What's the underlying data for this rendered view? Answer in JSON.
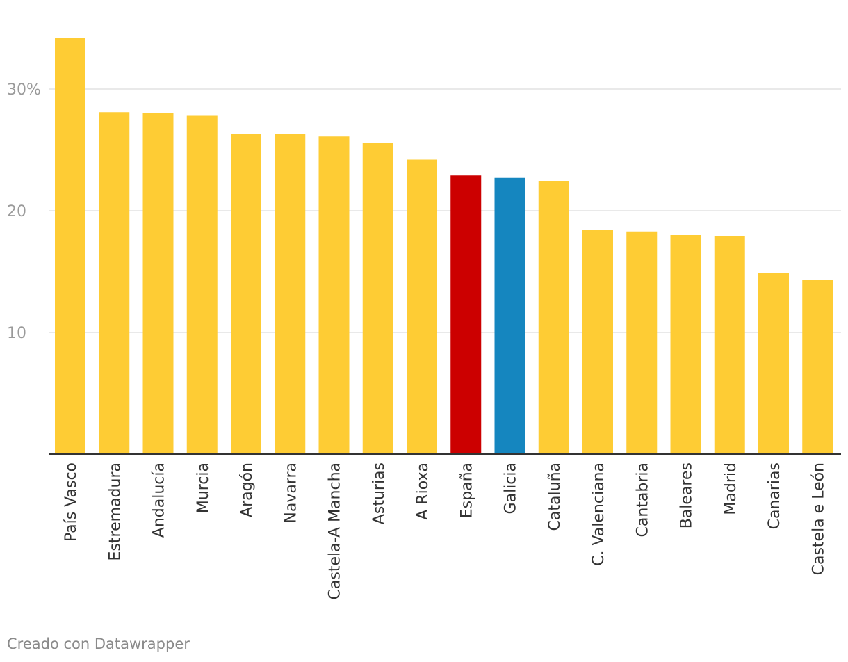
{
  "chart_data": {
    "type": "bar",
    "title": "",
    "xlabel": "",
    "ylabel": "",
    "categories": [
      "País Vasco",
      "Estremadura",
      "Andalucía",
      "Murcia",
      "Aragón",
      "Navarra",
      "Castela-A Mancha",
      "Asturias",
      "A Rioxa",
      "España",
      "Galicia",
      "Cataluña",
      "C. Valenciana",
      "Cantabria",
      "Baleares",
      "Madrid",
      "Canarias",
      "Castela e León"
    ],
    "values": [
      34.2,
      28.1,
      28.0,
      27.8,
      26.3,
      26.3,
      26.1,
      25.6,
      24.2,
      22.9,
      22.7,
      22.4,
      18.4,
      18.3,
      18.0,
      17.9,
      14.9,
      14.3
    ],
    "bar_colors": [
      "#fecc34",
      "#fecc34",
      "#fecc34",
      "#fecc34",
      "#fecc34",
      "#fecc34",
      "#fecc34",
      "#fecc34",
      "#fecc34",
      "#cc0000",
      "#1586bf",
      "#fecc34",
      "#fecc34",
      "#fecc34",
      "#fecc34",
      "#fecc34",
      "#fecc34",
      "#fecc34"
    ],
    "ylim": [
      0,
      35
    ],
    "yticks": [
      {
        "value": 10,
        "label": "10"
      },
      {
        "value": 20,
        "label": "20"
      },
      {
        "value": 30,
        "label": "30%"
      }
    ],
    "grid": true,
    "legend": "none"
  },
  "footer": {
    "credit": "Creado con Datawrapper"
  }
}
